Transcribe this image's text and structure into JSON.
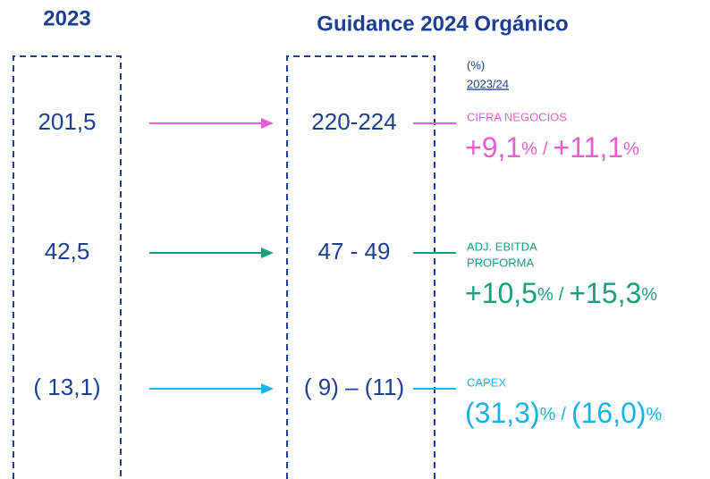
{
  "header": {
    "left_title": "2023",
    "right_title": "Guidance 2024 Orgánico",
    "unit": "(%)",
    "period": "2023/24"
  },
  "percent_sign": "%",
  "separator": "/",
  "rows": [
    {
      "value_2023": "201,5",
      "guidance": "220-224",
      "label_lines": [
        "CIFRA NEGOCIOS"
      ],
      "growth_low": "+9,1",
      "growth_high": "+11,1",
      "color": "#e55fcf"
    },
    {
      "value_2023": "42,5",
      "guidance": "47 - 49",
      "label_lines": [
        "ADJ. EBITDA",
        "PROFORMA"
      ],
      "growth_low": "+10,5",
      "growth_high": "+15,3",
      "color": "#17a07a"
    },
    {
      "value_2023": "( 13,1)",
      "guidance": "( 9) – (11)",
      "label_lines": [
        "CAPEX"
      ],
      "growth_low": "(31,3)",
      "growth_high": "(16,0)",
      "color": "#1ab2e6"
    }
  ]
}
